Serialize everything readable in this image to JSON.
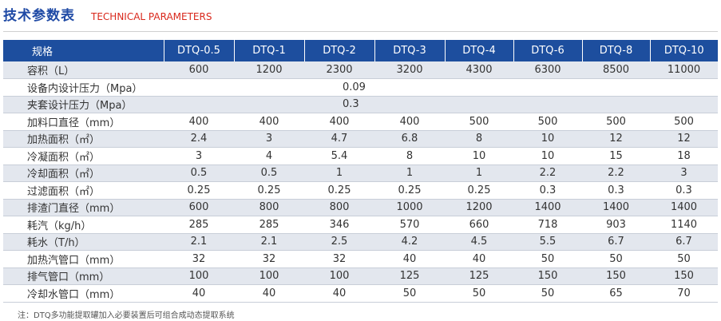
{
  "header": {
    "title_cn": "技术参数表",
    "title_en": "TECHNICAL PARAMETERS"
  },
  "table": {
    "columns": [
      "规格",
      "DTQ-0.5",
      "DTQ-1",
      "DTQ-2",
      "DTQ-3",
      "DTQ-4",
      "DTQ-6",
      "DTQ-8",
      "DTQ-10"
    ],
    "rows": [
      {
        "label": "容积（L）",
        "values": [
          "600",
          "1200",
          "2300",
          "3200",
          "4300",
          "6300",
          "8500",
          "11000"
        ]
      },
      {
        "label": "设备内设计压力（Mpa）",
        "span_value": "0.09"
      },
      {
        "label": "夹套设计压力（Mpa）",
        "span_value": "0.3"
      },
      {
        "label": "加料口直径（mm）",
        "values": [
          "400",
          "400",
          "400",
          "400",
          "500",
          "500",
          "500",
          "500"
        ]
      },
      {
        "label": "加热面积（㎡）",
        "values": [
          "2.4",
          "3",
          "4.7",
          "6.8",
          "8",
          "10",
          "12",
          "12"
        ]
      },
      {
        "label": "冷凝面积（㎡）",
        "values": [
          "3",
          "4",
          "5.4",
          "8",
          "10",
          "10",
          "15",
          "18"
        ]
      },
      {
        "label": "冷却面积（㎡）",
        "values": [
          "0.5",
          "0.5",
          "1",
          "1",
          "1",
          "2.2",
          "2.2",
          "3"
        ]
      },
      {
        "label": "过滤面积（㎡）",
        "values": [
          "0.25",
          "0.25",
          "0.25",
          "0.25",
          "0.25",
          "0.3",
          "0.3",
          "0.3"
        ]
      },
      {
        "label": "排渣门直径（mm）",
        "values": [
          "600",
          "800",
          "800",
          "1000",
          "1200",
          "1400",
          "1400",
          "1400"
        ]
      },
      {
        "label": "耗汽（kg/h）",
        "values": [
          "285",
          "285",
          "346",
          "570",
          "660",
          "718",
          "903",
          "1140"
        ]
      },
      {
        "label": "耗水（T/h）",
        "values": [
          "2.1",
          "2.1",
          "2.5",
          "4.2",
          "4.5",
          "5.5",
          "6.7",
          "6.7"
        ]
      },
      {
        "label": "加热汽管口（mm）",
        "values": [
          "32",
          "32",
          "32",
          "40",
          "40",
          "50",
          "50",
          "50"
        ]
      },
      {
        "label": "排气管口（mm）",
        "values": [
          "100",
          "100",
          "100",
          "125",
          "125",
          "150",
          "150",
          "150"
        ]
      },
      {
        "label": "冷却水管口（mm）",
        "values": [
          "40",
          "40",
          "40",
          "50",
          "50",
          "50",
          "65",
          "70"
        ]
      }
    ]
  },
  "footnote": "注：DTQ多功能提取罐加入必要装置后可组合成动态提取系统",
  "colors": {
    "header_bg": "#1d4e9e",
    "title_blue": "#1f4aa5",
    "title_red": "#d9281c",
    "row_stripe": "#e3e7ee"
  }
}
